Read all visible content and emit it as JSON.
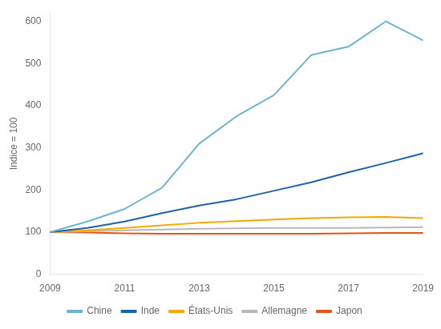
{
  "chart_data": {
    "type": "line",
    "x": [
      2009,
      2010,
      2011,
      2012,
      2013,
      2014,
      2015,
      2016,
      2017,
      2018,
      2019
    ],
    "series": [
      {
        "name": "Chine",
        "color": "#6cb4d0",
        "values": [
          100,
          125,
          155,
          205,
          310,
          375,
          425,
          520,
          540,
          600,
          555
        ]
      },
      {
        "name": "Inde",
        "color": "#2060a8",
        "values": [
          100,
          110,
          125,
          145,
          163,
          178,
          198,
          218,
          242,
          264,
          287
        ]
      },
      {
        "name": "États-Unis",
        "color": "#f5a800",
        "values": [
          100,
          104,
          110,
          116,
          122,
          126,
          130,
          133,
          135,
          136,
          133
        ]
      },
      {
        "name": "Allemagne",
        "color": "#b8b8b8",
        "values": [
          100,
          102,
          104,
          106,
          108,
          109,
          110,
          110,
          110,
          111,
          112
        ]
      },
      {
        "name": "Japon",
        "color": "#e05818",
        "values": [
          100,
          99,
          97,
          96,
          96,
          96,
          96,
          96,
          97,
          98,
          98
        ]
      }
    ],
    "ylabel": "Indice = 100",
    "xlim": [
      2009,
      2019
    ],
    "xticks": [
      2009,
      2011,
      2013,
      2015,
      2017,
      2019
    ],
    "ylim": [
      0,
      620
    ],
    "yticks": [
      0,
      100,
      200,
      300,
      400,
      500,
      600
    ],
    "grid": false,
    "legend": "bottom"
  }
}
